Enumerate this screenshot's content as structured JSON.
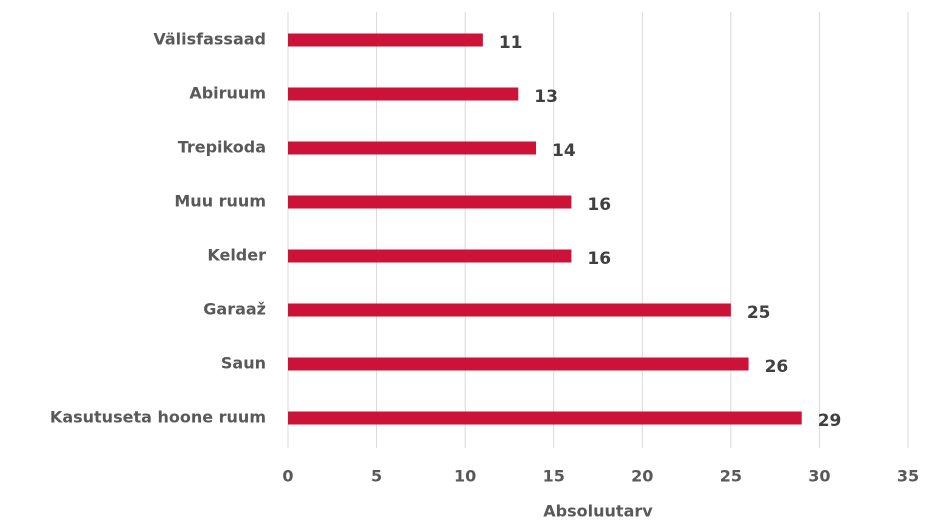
{
  "chart_data": {
    "type": "barh",
    "categories": [
      "Välisfassaad",
      "Abiruum",
      "Trepikoda",
      "Muu ruum",
      "Kelder",
      "Garaaž",
      "Saun",
      "Kasutuseta hoone ruum"
    ],
    "values": [
      11,
      13,
      14,
      16,
      16,
      25,
      26,
      29
    ],
    "color": "#cc1236",
    "xlabel": "Absoluutarv",
    "xlim": [
      0,
      35
    ],
    "xticks": [
      0,
      5,
      10,
      15,
      20,
      25,
      30,
      35
    ],
    "grid": true
  }
}
